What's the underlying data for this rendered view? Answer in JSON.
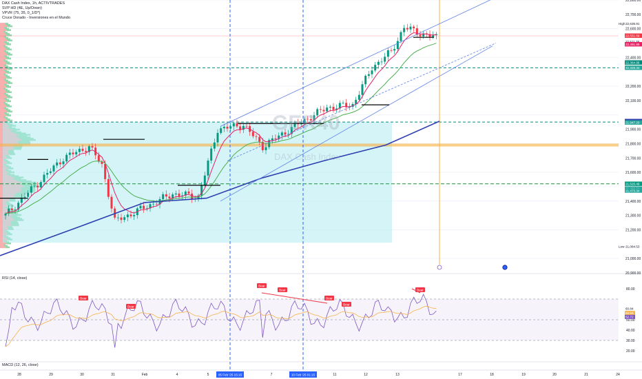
{
  "legend": {
    "symbol": "DAX Cash Index, 1h, ACTIVTRADES",
    "svp": "SVP HD (4E, Up/Down)",
    "vpvr": "VPVR (75, 35, 0_1/D*)",
    "indicator": "Cruce Dorado - Inversiones en el Mundo"
  },
  "watermark": {
    "ticker": "GER40",
    "name": "DAX Cash Index"
  },
  "rsi_label": "RSI (14, close)",
  "macd_label": "MACD (12, 26, close)",
  "colors": {
    "candle_up": "#089981",
    "candle_down": "#f23645",
    "ema_fast": "#e91e63",
    "ema_mid": "#4caf50",
    "ema_slow": "#2e3fb0",
    "range_fill": "#b2ebf2",
    "fib_line": "#00897b",
    "orange_line": "#f7b24a",
    "channel": "#5b80e8",
    "rsi_line": "#7e57c2",
    "bear_tag": "#f23645"
  },
  "chart_data": [
    {
      "type": "candlestick",
      "title": "DAX Cash Index, 1h, ACTIVTRADES",
      "ylim": [
        20900,
        22800
      ],
      "y_ticks": [
        "22,800.00",
        "22,700.00",
        "22,600.00",
        "22,400.00",
        "22,200.00",
        "22,100.00",
        "21,900.00",
        "21,800.00",
        "21,700.00",
        "21,600.00",
        "21,400.00",
        "21,300.00",
        "21,200.00",
        "21,000.00",
        "20,900.00"
      ],
      "x_ticks": [
        "28",
        "29",
        "30",
        "31",
        "Feb",
        "4",
        "5",
        "7",
        "11",
        "12",
        "13",
        "17",
        "18",
        "19",
        "20",
        "21",
        "24"
      ],
      "x_highlight_tags": [
        "05 Feb '25  15:15",
        "10 Feb '25  01:15"
      ],
      "price_tags": [
        {
          "label": "High",
          "value": "22,636.91",
          "color": "#ffffff"
        },
        {
          "label": "",
          "value": "22,551.69",
          "color": "#f23645"
        },
        {
          "label": "",
          "value": "22,511.28",
          "color": "#ffffff"
        },
        {
          "label": "",
          "value": "22,491.89",
          "color": "#e91e63"
        },
        {
          "label": "",
          "value": "22,364.96",
          "color": "#00897b"
        },
        {
          "label": "",
          "value": "22,328.33",
          "color": "#26a69a"
        },
        {
          "label": "",
          "value": "21,956.91",
          "color": "#2e3fb0"
        },
        {
          "label": "",
          "value": "21,947.20",
          "color": "#26a69a"
        },
        {
          "label": "",
          "value": "21,520.49",
          "color": "#089981"
        },
        {
          "label": "",
          "value": "21,486.34",
          "color": "#26a69a"
        },
        {
          "label": "",
          "value": "21,473.34",
          "color": "#26a69a"
        },
        {
          "label": "Low",
          "value": "21,084.53",
          "color": "#ffffff"
        }
      ],
      "horizontal_levels": {
        "dashed_teal": [
          22328,
          21950
        ],
        "dashed_green": [
          21520
        ],
        "orange_band": [
          21780,
          21800
        ],
        "faint_red": [
          22550
        ]
      },
      "series": [
        {
          "name": "",
          "type": "candles",
          "count": 160,
          "start": 21330,
          "end": 22540
        }
      ]
    },
    {
      "type": "line",
      "title": "RSI (14, close)",
      "ylim": [
        10,
        90
      ],
      "y_ticks": [
        "80.00",
        "60.84",
        "60.54",
        "50.00",
        "40.00",
        "30.00",
        "20.00"
      ],
      "value_tags": [
        {
          "value": "60.84",
          "color": "#ffffff"
        },
        {
          "value": "56.56",
          "color": "#f7b24a"
        },
        {
          "value": "52.72",
          "color": "#7e57c2"
        }
      ],
      "levels": [
        70,
        50,
        30
      ],
      "divergence_tags": [
        "Bear",
        "Bear",
        "Bear",
        "Bear",
        "Bear",
        "Bear",
        "Bear"
      ]
    },
    {
      "type": "line",
      "title": "MACD (12, 26, close)"
    }
  ]
}
